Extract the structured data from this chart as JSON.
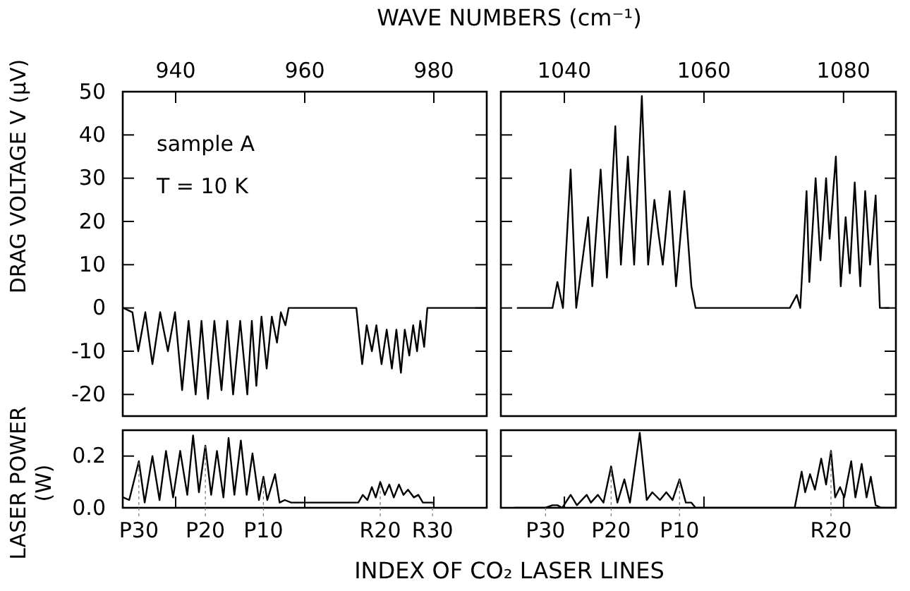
{
  "chart_data": [
    {
      "type": "line",
      "x2label": "WAVE NUMBERS (cm⁻¹)",
      "ylabel": "DRAG VOLTAGE V (μV)",
      "annotations": [
        "sample A",
        "T = 10 K"
      ],
      "xlim": [
        931.8,
        988.2
      ],
      "xticks": [
        940,
        960,
        980
      ],
      "ylim": [
        -25,
        50
      ],
      "yticks": [
        -20,
        -10,
        0,
        10,
        20,
        30,
        40,
        50
      ],
      "series": [
        {
          "color": "#000000",
          "x": [
            931.9,
            933.3,
            934.2,
            935.3,
            936.4,
            937.6,
            938.8,
            939.9,
            941.0,
            942.0,
            943.1,
            944.0,
            945.0,
            946.0,
            947.1,
            948.0,
            948.9,
            950.0,
            951.1,
            951.8,
            952.5,
            953.3,
            954.1,
            954.9,
            955.7,
            956.3,
            957.0,
            957.5,
            968.0,
            968.9,
            969.6,
            970.4,
            971.1,
            971.9,
            972.7,
            973.5,
            974.2,
            974.9,
            975.5,
            976.2,
            976.8,
            977.4,
            977.9,
            978.5,
            979.0,
            988.0
          ],
          "values": [
            0,
            -1,
            -10,
            -1,
            -13,
            -1,
            -10,
            -1,
            -19,
            -3,
            -20,
            -3,
            -21,
            -3,
            -19,
            -3,
            -20,
            -3,
            -20,
            -3,
            -18,
            -2,
            -14,
            -2,
            -8,
            -1,
            -4,
            0,
            0,
            -13,
            -4,
            -10,
            -4,
            -13,
            -5,
            -14,
            -5,
            -15,
            -5,
            -11,
            -4,
            -10,
            -3,
            -9,
            0,
            0
          ]
        }
      ]
    },
    {
      "type": "line",
      "xlim": [
        1030.9,
        1087.5
      ],
      "xticks": [
        1040,
        1060,
        1080
      ],
      "ylim": [
        -25,
        50
      ],
      "yticks": [
        -20,
        -10,
        0,
        10,
        20,
        30,
        40,
        50
      ],
      "tick_labels": "x",
      "series": [
        {
          "color": "#000000",
          "x": [
            1033.3,
            1038.3,
            1039.0,
            1039.8,
            1040.9,
            1041.7,
            1043.4,
            1044.0,
            1045.2,
            1046.1,
            1047.3,
            1048.1,
            1049.1,
            1050.0,
            1051.1,
            1052.0,
            1052.9,
            1053.5,
            1054.1,
            1055.1,
            1056.0,
            1057.2,
            1058.2,
            1058.8,
            1072.3,
            1073.3,
            1073.8,
            1074.7,
            1075.1,
            1076.0,
            1076.7,
            1077.5,
            1078.0,
            1078.9,
            1079.6,
            1080.3,
            1080.9,
            1081.6,
            1082.4,
            1083.1,
            1083.8,
            1084.6,
            1085.2,
            1086.5
          ],
          "values": [
            0,
            0,
            6,
            0,
            32,
            0,
            21,
            5,
            32,
            7,
            42,
            10,
            35,
            10,
            49,
            10,
            25,
            17,
            10,
            27,
            5,
            27,
            5,
            0,
            0,
            3,
            0,
            27,
            6,
            30,
            11,
            30,
            16,
            35,
            5,
            21,
            8,
            29,
            5,
            27,
            10,
            26,
            0,
            0
          ]
        }
      ]
    },
    {
      "type": "line",
      "xlabel": "INDEX OF CO₂ LASER LINES",
      "ylabel": "LASER POWER\n(W)",
      "xlim": [
        931.8,
        988.2
      ],
      "xticks": [
        940,
        960,
        980
      ],
      "tick_labels": "y",
      "annotations": [
        {
          "text": "P30",
          "x": 934.3,
          "y": 0.18
        },
        {
          "text": "P20",
          "x": 944.6,
          "y": 0.24
        },
        {
          "text": "P10",
          "x": 953.6,
          "y": 0.12
        },
        {
          "text": "R20",
          "x": 971.7,
          "y": 0.1
        },
        {
          "text": "R30",
          "x": 979.8,
          "y": 0.02
        }
      ],
      "ylim": [
        0,
        0.3
      ],
      "yticks": [
        {
          "value": 0,
          "label": "0.0"
        },
        {
          "value": 0.2,
          "label": "0.2"
        }
      ],
      "series": [
        {
          "color": "#000000",
          "x": [
            931.9,
            932.8,
            934.3,
            935.2,
            936.4,
            937.5,
            938.5,
            939.6,
            940.7,
            941.8,
            942.7,
            943.6,
            944.6,
            945.5,
            946.4,
            947.4,
            948.2,
            949.1,
            950.1,
            951.0,
            951.9,
            952.9,
            953.6,
            954.2,
            955.4,
            956.1,
            956.9,
            957.9,
            968.3,
            969.0,
            969.7,
            970.4,
            971.0,
            971.7,
            972.4,
            973.1,
            973.8,
            974.6,
            975.3,
            976.0,
            976.9,
            977.6,
            978.3,
            979.8
          ],
          "values": [
            0.04,
            0.03,
            0.18,
            0.02,
            0.2,
            0.03,
            0.22,
            0.04,
            0.22,
            0.05,
            0.28,
            0.06,
            0.24,
            0.05,
            0.22,
            0.04,
            0.27,
            0.05,
            0.26,
            0.05,
            0.21,
            0.03,
            0.12,
            0.03,
            0.13,
            0.02,
            0.03,
            0.02,
            0.02,
            0.05,
            0.03,
            0.08,
            0.04,
            0.1,
            0.05,
            0.09,
            0.04,
            0.09,
            0.05,
            0.07,
            0.04,
            0.05,
            0.02,
            0.02
          ]
        }
      ]
    },
    {
      "type": "line",
      "xlim": [
        1030.9,
        1087.5
      ],
      "xticks": [
        1040,
        1060,
        1080
      ],
      "tick_labels": false,
      "annotations": [
        {
          "text": "P30",
          "x": 1037.3,
          "y": 0
        },
        {
          "text": "P20",
          "x": 1046.7,
          "y": 0.16
        },
        {
          "text": "P10",
          "x": 1056.5,
          "y": 0.11
        },
        {
          "text": "R20",
          "x": 1078.2,
          "y": 0.22
        }
      ],
      "ylim": [
        0,
        0.3
      ],
      "yticks": [
        0,
        0.2
      ],
      "series": [
        {
          "color": "#000000",
          "x": [
            1032.9,
            1037.3,
            1038.3,
            1039.0,
            1039.7,
            1040.9,
            1041.8,
            1043.2,
            1043.8,
            1044.8,
            1045.6,
            1046.7,
            1047.6,
            1048.6,
            1049.4,
            1050.8,
            1051.8,
            1052.6,
            1053.7,
            1054.6,
            1055.5,
            1056.5,
            1057.4,
            1058.2,
            1058.8,
            1073.0,
            1074.0,
            1074.5,
            1075.2,
            1075.9,
            1076.8,
            1077.5,
            1078.2,
            1078.8,
            1079.5,
            1080.1,
            1081.1,
            1081.7,
            1082.6,
            1083.3,
            1083.9,
            1084.6,
            1085.4,
            1087.4
          ],
          "values": [
            0,
            0,
            0.01,
            0.01,
            0,
            0.05,
            0.01,
            0.05,
            0.02,
            0.05,
            0.02,
            0.16,
            0.02,
            0.11,
            0.02,
            0.29,
            0.03,
            0.06,
            0.03,
            0.06,
            0.03,
            0.11,
            0.02,
            0.02,
            0,
            0,
            0.14,
            0.06,
            0.13,
            0.07,
            0.19,
            0.09,
            0.22,
            0.04,
            0.08,
            0.04,
            0.18,
            0.04,
            0.17,
            0.04,
            0.12,
            0.01,
            0,
            0
          ]
        }
      ]
    }
  ]
}
